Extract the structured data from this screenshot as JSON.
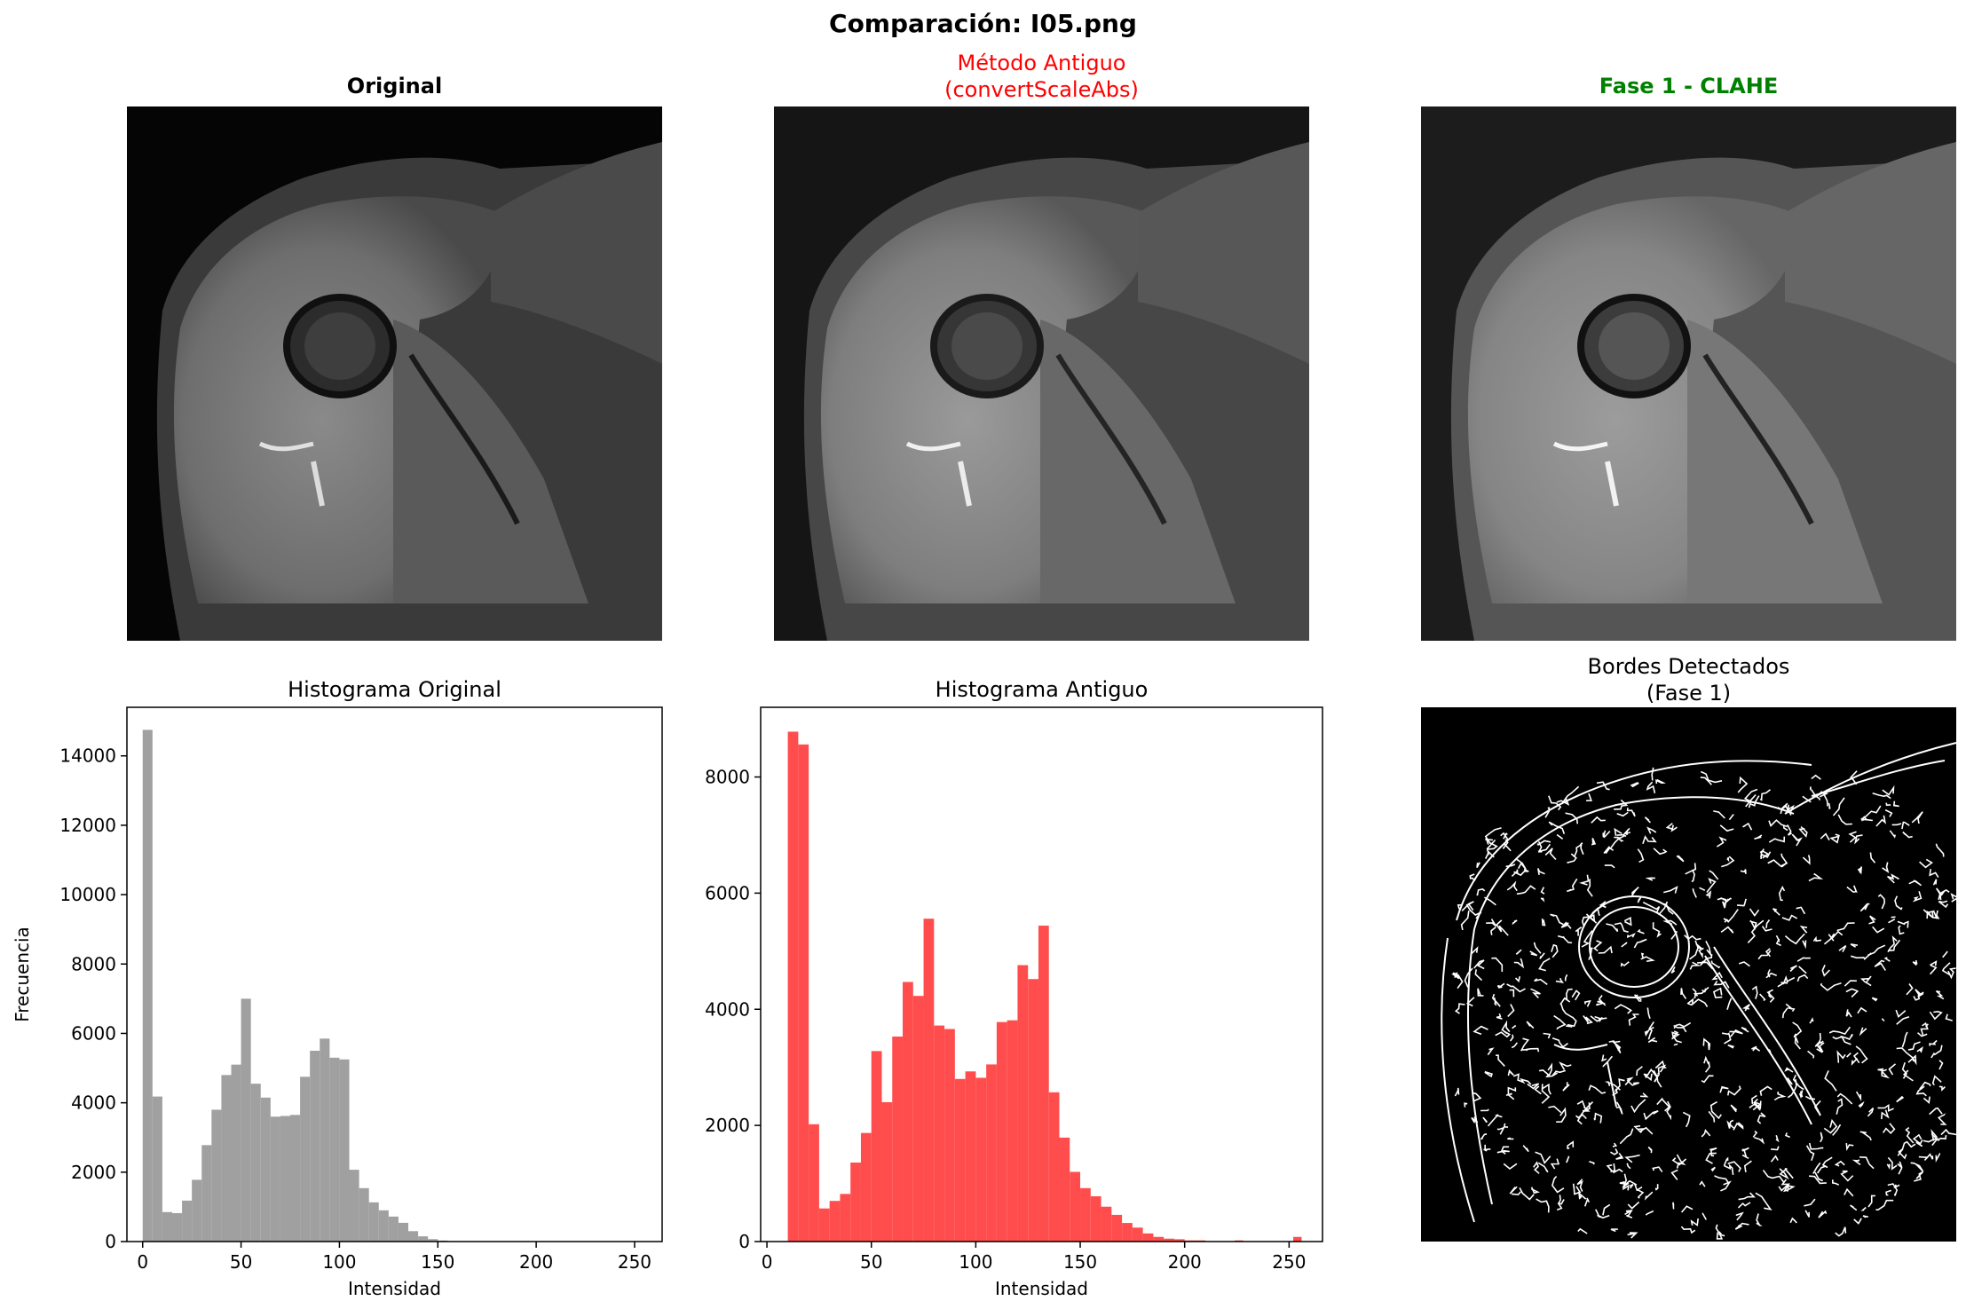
{
  "figure": {
    "title": "Comparación: I05.png"
  },
  "panels": {
    "original": {
      "title": "Original",
      "color": "#000000"
    },
    "old_method": {
      "title_line1": "Método Antiguo",
      "title_line2": "(convertScaleAbs)",
      "color": "#ff0000"
    },
    "clahe": {
      "title": "Fase 1 - CLAHE",
      "color": "#008000"
    },
    "edges": {
      "title_line1": "Bordes Detectados",
      "title_line2": "(Fase 1)"
    }
  },
  "chart_data": [
    {
      "type": "bar",
      "title": "Histograma Original",
      "xlabel": "Intensidad",
      "ylabel": "Frecuencia",
      "color": "#a0a0a0",
      "xlim": [
        -8,
        264
      ],
      "ylim": [
        0,
        15400
      ],
      "xticks": [
        0,
        50,
        100,
        150,
        200,
        250
      ],
      "yticks": [
        0,
        2000,
        4000,
        6000,
        8000,
        10000,
        12000,
        14000
      ],
      "bin_edges": [
        0,
        5,
        10,
        15,
        20,
        25,
        30,
        35,
        40,
        45,
        50,
        55,
        60,
        65,
        70,
        75,
        80,
        85,
        90,
        95,
        100,
        105,
        110,
        115,
        120,
        125,
        130,
        135,
        140,
        145,
        150,
        155,
        160,
        165
      ],
      "values": [
        14750,
        4180,
        850,
        820,
        1180,
        1780,
        2780,
        3800,
        4800,
        5100,
        7000,
        4550,
        4150,
        3600,
        3620,
        3650,
        4750,
        5500,
        5850,
        5300,
        5250,
        2070,
        1540,
        1130,
        900,
        720,
        540,
        300,
        150,
        70,
        30,
        10,
        5
      ]
    },
    {
      "type": "bar",
      "title": "Histograma Antiguo",
      "xlabel": "Intensidad",
      "ylabel": "",
      "color": "#ff4d4d",
      "xlim": [
        -3,
        266
      ],
      "ylim": [
        0,
        9200
      ],
      "xticks": [
        0,
        50,
        100,
        150,
        200,
        250
      ],
      "yticks": [
        0,
        2000,
        4000,
        6000,
        8000
      ],
      "bin_edges": [
        10,
        15,
        20,
        25,
        30,
        35,
        40,
        45,
        50,
        55,
        60,
        65,
        70,
        75,
        80,
        85,
        90,
        95,
        100,
        105,
        110,
        115,
        120,
        125,
        130,
        135,
        140,
        145,
        150,
        155,
        160,
        165,
        170,
        175,
        180,
        185,
        190,
        195,
        200,
        205,
        210
      ],
      "values": [
        8780,
        8560,
        2020,
        570,
        700,
        820,
        1360,
        1870,
        3280,
        2400,
        3530,
        4470,
        4230,
        5560,
        3720,
        3660,
        2800,
        2930,
        2820,
        3050,
        3780,
        3810,
        4760,
        4520,
        5440,
        2570,
        1790,
        1200,
        920,
        780,
        600,
        460,
        320,
        240,
        140,
        80,
        50,
        40,
        20,
        20
      ],
      "extra_bars": [
        {
          "x0": 224,
          "x1": 228,
          "value": 20
        },
        {
          "x0": 252,
          "x1": 256,
          "value": 80
        }
      ]
    }
  ]
}
